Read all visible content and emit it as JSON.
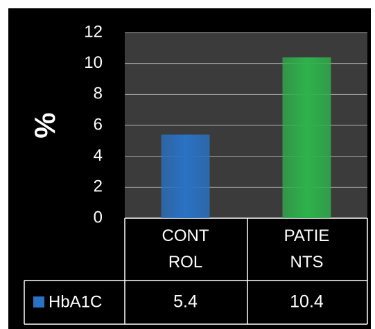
{
  "chart_data": {
    "type": "bar",
    "ylabel": "%",
    "categories": [
      "CONTROL",
      "PATIENTS"
    ],
    "series": [
      {
        "name": "HbA1C",
        "color": "#2a72c4",
        "colors": [
          "#2a72c4",
          "#2fb24c"
        ],
        "values": [
          5.4,
          10.4
        ]
      }
    ],
    "ylim": [
      0,
      12
    ],
    "yticks": [
      0,
      2,
      4,
      6,
      8,
      10,
      12
    ],
    "grid": true,
    "data_table": true
  }
}
